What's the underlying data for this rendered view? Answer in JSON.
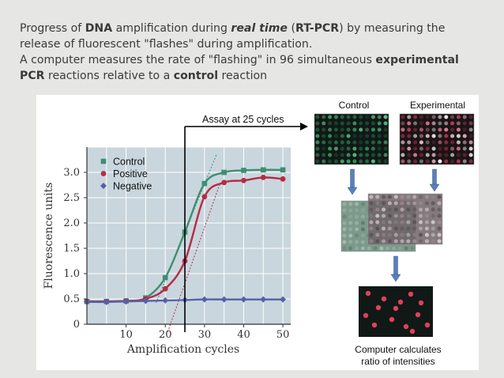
{
  "caption": {
    "line1": [
      {
        "text": "Progress of ",
        "style": "normal"
      },
      {
        "text": "DNA",
        "style": "bold"
      },
      {
        "text": " amplification during ",
        "style": "normal"
      },
      {
        "text": "real time",
        "style": "bold-italic"
      },
      {
        "text": " (",
        "style": "normal"
      },
      {
        "text": "RT-PCR",
        "style": "bold"
      },
      {
        "text": ") by measuring the",
        "style": "normal"
      }
    ],
    "line2": [
      {
        "text": "release of fluorescent \"flashes\" during amplification.",
        "style": "normal"
      }
    ],
    "line3": [
      {
        "text": "A computer measures the rate of \"flashing\"  in 96 simultaneous ",
        "style": "normal"
      },
      {
        "text": "experimental",
        "style": "bold"
      }
    ],
    "line4": [
      {
        "text": "PCR",
        "style": "bold"
      },
      {
        "text": " reactions relative to a ",
        "style": "normal"
      },
      {
        "text": "control",
        "style": "bold"
      },
      {
        "text": " reaction",
        "style": "normal"
      }
    ]
  },
  "chart_data": {
    "type": "line",
    "xlabel": "Amplification cycles",
    "ylabel": "Fluorescence units",
    "xlim": [
      0,
      52
    ],
    "ylim": [
      0,
      3.5
    ],
    "xticks": [
      10,
      20,
      30,
      40,
      50
    ],
    "yticks": [
      0,
      0.5,
      1.0,
      1.5,
      2.0,
      2.5,
      3.0
    ],
    "ytick_labels": [
      "0",
      "0.5",
      "1.0",
      "1.5",
      "2.0",
      "2.5",
      "3.0"
    ],
    "grid": true,
    "legend_position": "top-left",
    "series": [
      {
        "name": "Control",
        "marker": "square",
        "color": "#3e8f72",
        "x": [
          0,
          5,
          10,
          15,
          20,
          25,
          30,
          35,
          40,
          45,
          50
        ],
        "y": [
          0.45,
          0.45,
          0.46,
          0.52,
          0.92,
          1.82,
          2.78,
          3.0,
          3.04,
          3.05,
          3.05
        ]
      },
      {
        "name": "Positive",
        "marker": "circle",
        "color": "#b52c45",
        "x": [
          0,
          5,
          10,
          15,
          20,
          25,
          30,
          35,
          40,
          45,
          50
        ],
        "y": [
          0.45,
          0.45,
          0.46,
          0.5,
          0.7,
          1.25,
          2.52,
          2.8,
          2.84,
          2.9,
          2.87
        ]
      },
      {
        "name": "Negative",
        "marker": "diamond",
        "color": "#5561a8",
        "x": [
          0,
          5,
          10,
          15,
          20,
          25,
          30,
          35,
          40,
          45,
          50
        ],
        "y": [
          0.44,
          0.44,
          0.45,
          0.46,
          0.47,
          0.48,
          0.49,
          0.49,
          0.49,
          0.49,
          0.49
        ]
      }
    ],
    "annotations": {
      "assay_cycle": 25,
      "assay_label": "Assay at 25 cycles"
    }
  },
  "diagram": {
    "control_label": "Control",
    "experimental_label": "Experimental",
    "result_label_line1": "Computer calculates",
    "result_label_line2": "ratio of intensities",
    "colors": {
      "control_plate": "#111816",
      "control_dots": "#2f9a60",
      "experimental_plate": "#1a1416",
      "experimental_dots": "#c43a5c",
      "result_plate": "#101915",
      "result_dots": "#e0405e",
      "arrow_fill": "#5b7fb8"
    }
  }
}
